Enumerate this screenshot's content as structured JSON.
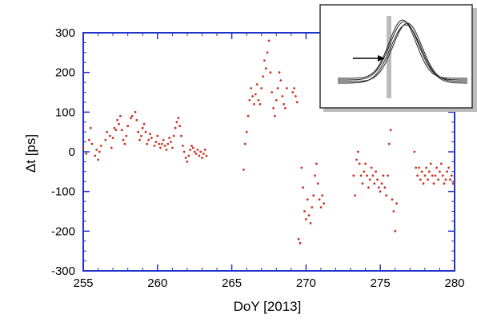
{
  "chart_data": {
    "type": "scatter",
    "title": "",
    "xlabel": "DoY [2013]",
    "ylabel": "Δt [ps]",
    "xlim": [
      255,
      280
    ],
    "ylim": [
      -300,
      300
    ],
    "xticks": [
      255,
      260,
      265,
      270,
      275,
      280
    ],
    "yticks": [
      -300,
      -200,
      -100,
      0,
      100,
      200,
      300
    ],
    "grid": false,
    "legend": "none",
    "colors": {
      "axes": "#2233cc",
      "points": "#cc3322",
      "inset_marker": "#bbbbbb",
      "inset_curves": "#222222"
    },
    "series": [
      {
        "points": [
          [
            255.0,
            10
          ],
          [
            255.2,
            -5
          ],
          [
            255.4,
            30
          ],
          [
            255.5,
            60
          ],
          [
            255.6,
            20
          ],
          [
            255.8,
            -10
          ],
          [
            255.9,
            5
          ],
          [
            256.0,
            -20
          ],
          [
            256.1,
            0
          ],
          [
            256.2,
            15
          ],
          [
            256.5,
            30
          ],
          [
            256.6,
            50
          ],
          [
            256.8,
            40
          ],
          [
            256.9,
            10
          ],
          [
            257.0,
            35
          ],
          [
            257.1,
            60
          ],
          [
            257.2,
            55
          ],
          [
            257.3,
            80
          ],
          [
            257.4,
            70
          ],
          [
            257.5,
            90
          ],
          [
            257.6,
            55
          ],
          [
            257.7,
            30
          ],
          [
            257.8,
            20
          ],
          [
            257.9,
            40
          ],
          [
            258.0,
            65
          ],
          [
            258.2,
            85
          ],
          [
            258.3,
            90
          ],
          [
            258.5,
            100
          ],
          [
            258.6,
            80
          ],
          [
            258.7,
            50
          ],
          [
            258.8,
            30
          ],
          [
            258.9,
            40
          ],
          [
            259.0,
            60
          ],
          [
            259.1,
            70
          ],
          [
            259.2,
            50
          ],
          [
            259.3,
            20
          ],
          [
            259.4,
            30
          ],
          [
            259.5,
            45
          ],
          [
            259.6,
            35
          ],
          [
            259.8,
            15
          ],
          [
            259.9,
            25
          ],
          [
            260.0,
            40
          ],
          [
            260.1,
            20
          ],
          [
            260.2,
            10
          ],
          [
            260.3,
            20
          ],
          [
            260.4,
            30
          ],
          [
            260.5,
            15
          ],
          [
            260.6,
            5
          ],
          [
            260.7,
            20
          ],
          [
            260.8,
            35
          ],
          [
            260.9,
            25
          ],
          [
            261.0,
            10
          ],
          [
            261.1,
            40
          ],
          [
            261.2,
            60
          ],
          [
            261.3,
            75
          ],
          [
            261.4,
            85
          ],
          [
            261.5,
            65
          ],
          [
            261.6,
            40
          ],
          [
            261.7,
            15
          ],
          [
            261.8,
            0
          ],
          [
            261.9,
            -15
          ],
          [
            262.0,
            -25
          ],
          [
            262.1,
            -10
          ],
          [
            262.2,
            5
          ],
          [
            262.3,
            15
          ],
          [
            262.4,
            10
          ],
          [
            262.5,
            0
          ],
          [
            262.6,
            -5
          ],
          [
            262.7,
            5
          ],
          [
            262.8,
            -10
          ],
          [
            262.9,
            0
          ],
          [
            263.0,
            -15
          ],
          [
            263.1,
            -5
          ],
          [
            263.2,
            5
          ],
          [
            263.3,
            -10
          ],
          [
            265.8,
            -45
          ],
          [
            265.9,
            20
          ],
          [
            266.0,
            50
          ],
          [
            266.1,
            90
          ],
          [
            266.2,
            130
          ],
          [
            266.3,
            160
          ],
          [
            266.4,
            140
          ],
          [
            266.5,
            120
          ],
          [
            266.6,
            145
          ],
          [
            266.7,
            170
          ],
          [
            266.8,
            130
          ],
          [
            266.9,
            120
          ],
          [
            267.0,
            160
          ],
          [
            267.1,
            190
          ],
          [
            267.2,
            230
          ],
          [
            267.3,
            210
          ],
          [
            267.4,
            250
          ],
          [
            267.5,
            280
          ],
          [
            267.6,
            200
          ],
          [
            267.7,
            150
          ],
          [
            267.8,
            110
          ],
          [
            267.9,
            90
          ],
          [
            268.0,
            130
          ],
          [
            268.1,
            160
          ],
          [
            268.2,
            200
          ],
          [
            268.3,
            180
          ],
          [
            268.4,
            140
          ],
          [
            268.5,
            120
          ],
          [
            268.6,
            110
          ],
          [
            268.7,
            160
          ],
          [
            269.1,
            150
          ],
          [
            269.2,
            160
          ],
          [
            269.3,
            140
          ],
          [
            269.4,
            125
          ],
          [
            269.5,
            -220
          ],
          [
            269.6,
            -230
          ],
          [
            269.7,
            -40
          ],
          [
            269.8,
            -90
          ],
          [
            269.9,
            -150
          ],
          [
            270.0,
            -170
          ],
          [
            270.1,
            -120
          ],
          [
            270.2,
            -160
          ],
          [
            270.3,
            -180
          ],
          [
            270.4,
            -140
          ],
          [
            270.5,
            -110
          ],
          [
            270.6,
            -60
          ],
          [
            270.7,
            -30
          ],
          [
            270.8,
            -80
          ],
          [
            270.9,
            -120
          ],
          [
            271.0,
            -140
          ],
          [
            271.1,
            -110
          ],
          [
            271.2,
            -130
          ],
          [
            273.2,
            -60
          ],
          [
            273.3,
            -110
          ],
          [
            273.4,
            -20
          ],
          [
            273.5,
            0
          ],
          [
            273.6,
            -30
          ],
          [
            273.7,
            -60
          ],
          [
            273.8,
            -80
          ],
          [
            273.9,
            -50
          ],
          [
            274.0,
            -30
          ],
          [
            274.1,
            -60
          ],
          [
            274.2,
            -90
          ],
          [
            274.3,
            -70
          ],
          [
            274.4,
            -40
          ],
          [
            274.5,
            -60
          ],
          [
            274.6,
            -80
          ],
          [
            274.7,
            -50
          ],
          [
            274.8,
            -70
          ],
          [
            274.9,
            -90
          ],
          [
            275.0,
            -100
          ],
          [
            275.1,
            -80
          ],
          [
            275.2,
            -60
          ],
          [
            275.3,
            -90
          ],
          [
            275.4,
            -110
          ],
          [
            275.5,
            -60
          ],
          [
            275.6,
            20
          ],
          [
            275.7,
            55
          ],
          [
            275.8,
            -120
          ],
          [
            275.9,
            -150
          ],
          [
            276.0,
            -200
          ],
          [
            276.1,
            -130
          ],
          [
            277.3,
            0
          ],
          [
            277.4,
            -40
          ],
          [
            277.5,
            -60
          ],
          [
            277.6,
            -40
          ],
          [
            277.7,
            -70
          ],
          [
            277.8,
            -50
          ],
          [
            277.9,
            -80
          ],
          [
            278.0,
            -60
          ],
          [
            278.1,
            -40
          ],
          [
            278.2,
            -70
          ],
          [
            278.3,
            -50
          ],
          [
            278.4,
            -30
          ],
          [
            278.5,
            -60
          ],
          [
            278.6,
            -80
          ],
          [
            278.7,
            -60
          ],
          [
            278.8,
            -40
          ],
          [
            278.9,
            -70
          ],
          [
            279.0,
            -50
          ],
          [
            279.1,
            -30
          ],
          [
            279.2,
            -60
          ],
          [
            279.3,
            -80
          ],
          [
            279.4,
            -70
          ],
          [
            279.5,
            -50
          ],
          [
            279.6,
            -40
          ],
          [
            279.7,
            -70
          ],
          [
            279.8,
            -60
          ],
          [
            279.9,
            -80
          ]
        ]
      }
    ]
  }
}
